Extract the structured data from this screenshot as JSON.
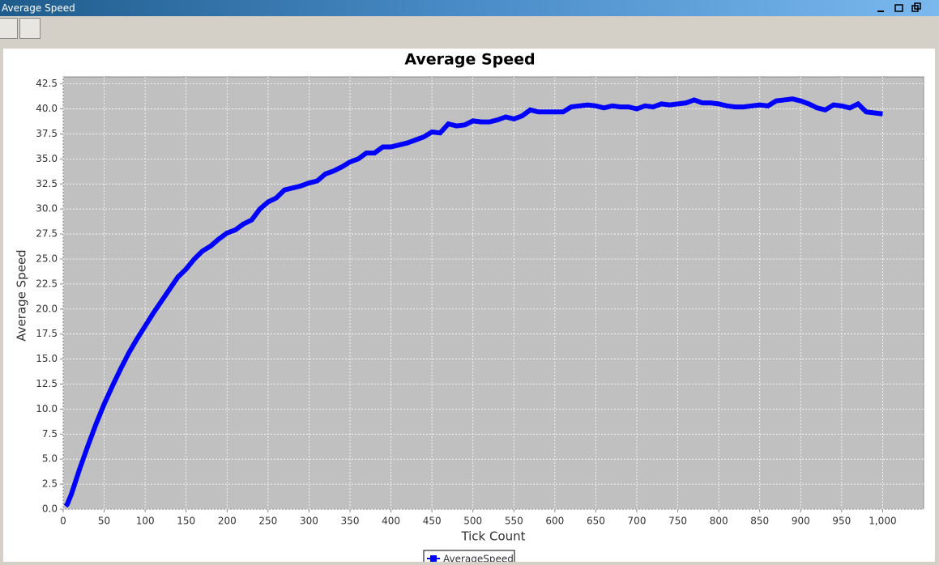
{
  "window": {
    "title": "Average Speed"
  },
  "chart_data": {
    "type": "line",
    "title": "Average Speed",
    "x_label": "Tick Count",
    "y_label": "Average Speed",
    "x": [
      3,
      5,
      10,
      20,
      30,
      40,
      50,
      60,
      70,
      80,
      90,
      100,
      110,
      120,
      130,
      140,
      150,
      160,
      170,
      180,
      190,
      200,
      210,
      220,
      230,
      240,
      250,
      260,
      270,
      280,
      290,
      300,
      310,
      320,
      330,
      340,
      350,
      360,
      370,
      380,
      390,
      400,
      410,
      420,
      430,
      440,
      450,
      460,
      470,
      480,
      490,
      500,
      510,
      520,
      530,
      540,
      550,
      560,
      570,
      580,
      590,
      600,
      610,
      620,
      630,
      640,
      650,
      660,
      670,
      680,
      690,
      700,
      710,
      720,
      730,
      740,
      750,
      760,
      770,
      780,
      790,
      800,
      810,
      820,
      830,
      840,
      850,
      860,
      870,
      880,
      890,
      900,
      910,
      920,
      930,
      940,
      950,
      960,
      970,
      980,
      990,
      1000
    ],
    "series": [
      {
        "name": "AverageSpeed",
        "color": "#0000ff",
        "values": [
          0.3,
          0.5,
          1.5,
          4,
          6.3,
          8.5,
          10.5,
          12.3,
          14,
          15.6,
          17,
          18.3,
          19.6,
          20.8,
          22,
          23.2,
          24,
          25,
          25.8,
          26.3,
          27,
          27.6,
          27.9,
          28.5,
          28.9,
          30,
          30.7,
          31.1,
          31.9,
          32.1,
          32.3,
          32.6,
          32.8,
          33.5,
          33.8,
          34.2,
          34.7,
          35,
          35.6,
          35.6,
          36.2,
          36.2,
          36.4,
          36.6,
          36.9,
          37.2,
          37.7,
          37.6,
          38.5,
          38.3,
          38.4,
          38.8,
          38.7,
          38.7,
          38.9,
          39.2,
          39,
          39.3,
          39.9,
          39.7,
          39.7,
          39.7,
          39.7,
          40.2,
          40.3,
          40.4,
          40.3,
          40.1,
          40.3,
          40.2,
          40.2,
          40,
          40.3,
          40.2,
          40.5,
          40.4,
          40.5,
          40.6,
          40.9,
          40.6,
          40.6,
          40.5,
          40.3,
          40.2,
          40.2,
          40.3,
          40.4,
          40.3,
          40.8,
          40.9,
          41,
          40.8,
          40.5,
          40.1,
          39.9,
          40.4,
          40.3,
          40.1,
          40.5,
          39.7,
          39.6,
          39.5
        ]
      }
    ],
    "xlim": [
      0,
      1050
    ],
    "ylim": [
      0,
      43.2
    ],
    "xticks": [
      0,
      50,
      100,
      150,
      200,
      250,
      300,
      350,
      400,
      450,
      500,
      550,
      600,
      650,
      700,
      750,
      800,
      850,
      900,
      950,
      {
        "value": 1000,
        "label": "1,000"
      }
    ],
    "yticks": [
      {
        "value": 0,
        "label": "0.0"
      },
      2.5,
      {
        "value": 5,
        "label": "5.0"
      },
      7.5,
      {
        "value": 10,
        "label": "10.0"
      },
      12.5,
      {
        "value": 15,
        "label": "15.0"
      },
      17.5,
      {
        "value": 20,
        "label": "20.0"
      },
      22.5,
      {
        "value": 25,
        "label": "25.0"
      },
      27.5,
      {
        "value": 30,
        "label": "30.0"
      },
      32.5,
      {
        "value": 35,
        "label": "35.0"
      },
      37.5,
      {
        "value": 40,
        "label": "40.0"
      },
      42.5
    ],
    "grid": true,
    "legend": "bottom"
  }
}
